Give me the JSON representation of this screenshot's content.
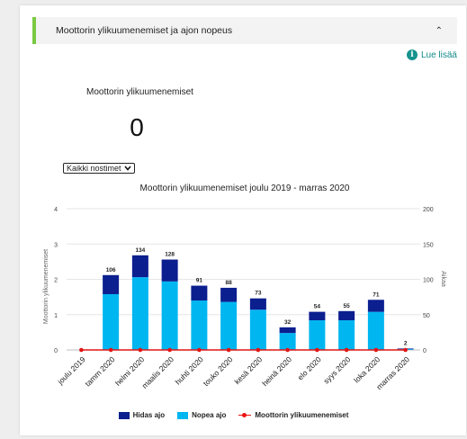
{
  "panel": {
    "title": "Moottorin ylikuumenemiset ja ajon nopeus",
    "collapse_icon": "⌃"
  },
  "read_more": {
    "label": "Lue lisää",
    "icon": "info-icon"
  },
  "stat": {
    "label": "Moottorin ylikuumenemiset",
    "value": "0"
  },
  "filter": {
    "selected": "Kaikki nostimet",
    "icon": "chevron-down-icon"
  },
  "colors": {
    "dark": "#0b1f8f",
    "light": "#00b6f1",
    "line": "#e11414",
    "accent": "#7ac943"
  },
  "chart_data": {
    "type": "bar",
    "title": "Moottorin ylikuumenemiset joulu 2019 - marras 2020",
    "ylabel_left": "Moottorin ylikuumenemiset",
    "ylabel_right": "Aikaa",
    "ylim_left": [
      0,
      4
    ],
    "ylim_right": [
      0,
      200
    ],
    "yticks_left": [
      "0",
      "1",
      "2",
      "3",
      "4"
    ],
    "yticks_right": [
      "0",
      "50",
      "100",
      "150",
      "200"
    ],
    "categories": [
      "joulu 2019",
      "tamm 2020",
      "helmi 2020",
      "maalis 2020",
      "huhti 2020",
      "touko 2020",
      "kesä 2020",
      "heinä 2020",
      "elo 2020",
      "syys 2020",
      "loka 2020",
      "marras 2020"
    ],
    "series": [
      {
        "name": "Hidas ajo",
        "axis": "right",
        "values": [
          0,
          27,
          31,
          31,
          21,
          20,
          16,
          8,
          12,
          13,
          17,
          1
        ]
      },
      {
        "name": "Nopea ajo",
        "axis": "right",
        "values": [
          0,
          79,
          103,
          97,
          70,
          68,
          57,
          24,
          42,
          42,
          54,
          1
        ]
      },
      {
        "name": "Moottorin ylikuumenemiset",
        "axis": "left",
        "type": "line",
        "values": [
          0,
          0,
          0,
          0,
          0,
          0,
          0,
          0,
          0,
          0,
          0,
          0
        ]
      }
    ],
    "totals": [
      "",
      "106",
      "134",
      "128",
      "91",
      "88",
      "73",
      "32",
      "54",
      "55",
      "71",
      "2"
    ],
    "grid": true,
    "legend": "bottom-center"
  }
}
